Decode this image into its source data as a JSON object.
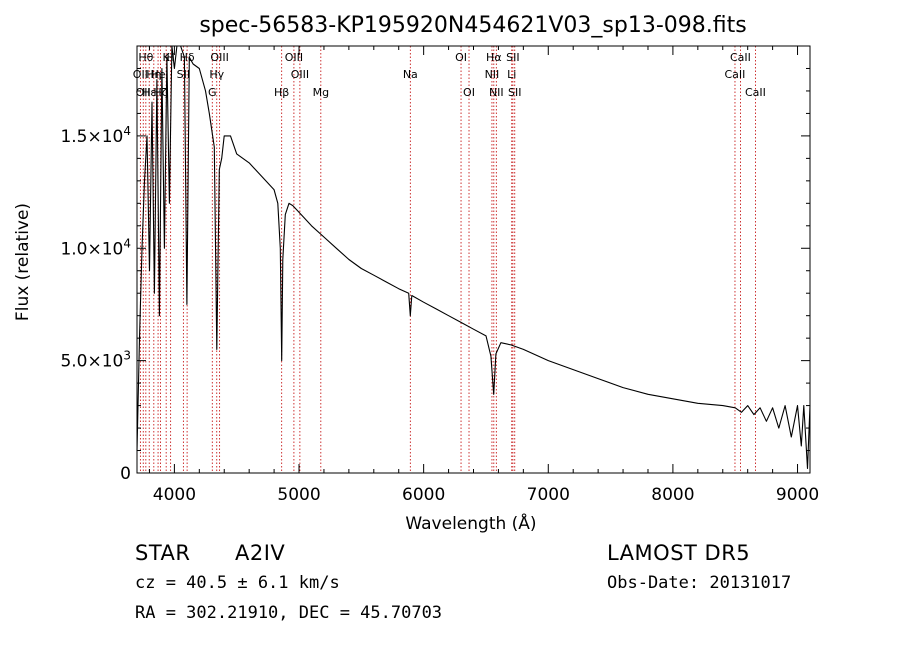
{
  "chart_data": {
    "type": "line",
    "title": "spec-56583-KP195920N454621V03_sp13-098.fits",
    "xlabel": "Wavelength (Å)",
    "ylabel": "Flux (relative)",
    "xlim": [
      3700,
      9100
    ],
    "ylim": [
      0,
      19000
    ],
    "x_ticks": [
      4000,
      5000,
      6000,
      7000,
      8000,
      9000
    ],
    "x_tick_labels": [
      "4000",
      "5000",
      "6000",
      "7000",
      "8000",
      "9000"
    ],
    "y_ticks": [
      0,
      5000,
      10000,
      15000
    ],
    "y_tick_labels": [
      {
        "mant": "0",
        "exp": ""
      },
      {
        "mant": "5.0×10",
        "exp": "3"
      },
      {
        "mant": "1.0×10",
        "exp": "4"
      },
      {
        "mant": "1.5×10",
        "exp": "4"
      }
    ],
    "grid": false,
    "series": [
      {
        "x": [
          3700,
          3720,
          3740,
          3760,
          3780,
          3800,
          3820,
          3840,
          3860,
          3880,
          3900,
          3920,
          3940,
          3960,
          3980,
          4000,
          4020,
          4050,
          4080,
          4100,
          4120,
          4150,
          4200,
          4250,
          4280,
          4320,
          4340,
          4360,
          4380,
          4400,
          4450,
          4500,
          4600,
          4700,
          4800,
          4830,
          4850,
          4861,
          4870,
          4890,
          4920,
          4950,
          5000,
          5100,
          5200,
          5300,
          5400,
          5500,
          5600,
          5700,
          5800,
          5880,
          5893,
          5905,
          6000,
          6100,
          6200,
          6300,
          6400,
          6500,
          6540,
          6562,
          6580,
          6620,
          6700,
          6800,
          7000,
          7200,
          7400,
          7600,
          7800,
          8000,
          8200,
          8400,
          8500,
          8550,
          8600,
          8650,
          8700,
          8750,
          8800,
          8850,
          8900,
          8950,
          9000,
          9030,
          9050,
          9080,
          9100
        ],
        "y": [
          1000,
          6000,
          10000,
          13000,
          15000,
          9000,
          16500,
          8000,
          17500,
          7000,
          18000,
          10000,
          18500,
          12000,
          19000,
          18000,
          19000,
          19000,
          18500,
          7500,
          18500,
          18200,
          18000,
          17000,
          16000,
          14500,
          5500,
          13500,
          14000,
          15000,
          15000,
          14200,
          13800,
          13200,
          12600,
          12000,
          10000,
          5000,
          9500,
          11500,
          12000,
          11900,
          11600,
          11000,
          10500,
          10000,
          9500,
          9100,
          8800,
          8500,
          8200,
          8000,
          7000,
          7900,
          7600,
          7300,
          7000,
          6700,
          6400,
          6100,
          5200,
          3500,
          5300,
          5800,
          5700,
          5500,
          5000,
          4600,
          4200,
          3800,
          3500,
          3300,
          3100,
          3000,
          2900,
          2700,
          3000,
          2600,
          2900,
          2300,
          2900,
          2000,
          3000,
          1600,
          3000,
          1200,
          3000,
          200,
          3000
        ]
      }
    ],
    "lines": [
      {
        "x": 3727,
        "label": "OII",
        "row": 1
      },
      {
        "x": 3750,
        "label": "OII",
        "row": 2
      },
      {
        "x": 3771,
        "label": "Hθ",
        "row": 0
      },
      {
        "x": 3798,
        "label": "Hε",
        "row": 2
      },
      {
        "x": 3835,
        "label": "Hη",
        "row": 1
      },
      {
        "x": 3869,
        "label": "He",
        "row": 1
      },
      {
        "x": 3889,
        "label": "Hζ",
        "row": 2
      },
      {
        "x": 3934,
        "label": "K",
        "row": 0
      },
      {
        "x": 3970,
        "label": "H",
        "row": 0
      },
      {
        "x": 4072,
        "label": "SII",
        "row": 1
      },
      {
        "x": 4102,
        "label": "Hδ",
        "row": 0
      },
      {
        "x": 4304,
        "label": "G",
        "row": 2
      },
      {
        "x": 4340,
        "label": "Hγ",
        "row": 1
      },
      {
        "x": 4363,
        "label": "OIII",
        "row": 0
      },
      {
        "x": 4861,
        "label": "Hβ",
        "row": 2
      },
      {
        "x": 4959,
        "label": "OIII",
        "row": 0
      },
      {
        "x": 5007,
        "label": "OIII",
        "row": 1
      },
      {
        "x": 5175,
        "label": "Mg",
        "row": 2
      },
      {
        "x": 5893,
        "label": "Na",
        "row": 1
      },
      {
        "x": 6300,
        "label": "OI",
        "row": 0
      },
      {
        "x": 6364,
        "label": "OI",
        "row": 2
      },
      {
        "x": 6548,
        "label": "NII",
        "row": 1
      },
      {
        "x": 6563,
        "label": "Hα",
        "row": 0
      },
      {
        "x": 6583,
        "label": "NII",
        "row": 2
      },
      {
        "x": 6707,
        "label": "Li",
        "row": 1
      },
      {
        "x": 6716,
        "label": "SII",
        "row": 0
      },
      {
        "x": 6731,
        "label": "SII",
        "row": 2
      },
      {
        "x": 8498,
        "label": "CaII",
        "row": 1
      },
      {
        "x": 8542,
        "label": "CaII",
        "row": 0
      },
      {
        "x": 8662,
        "label": "CaII",
        "row": 2
      }
    ]
  },
  "info": {
    "object_class": "STAR",
    "subclass": "A2IV",
    "survey": "LAMOST DR5",
    "cz": "cz = 40.5 ± 6.1 km/s",
    "obs_date": "Obs-Date: 20131017",
    "coords": "RA = 302.21910, DEC =  45.70703"
  }
}
